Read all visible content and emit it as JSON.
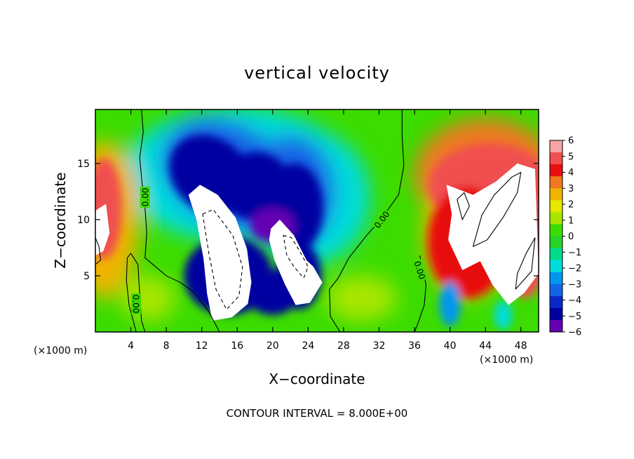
{
  "chart_data": {
    "type": "heatmap",
    "title": "vertical velocity",
    "xlabel": "X−coordinate",
    "ylabel": "Z−coordinate",
    "x_unit_label": "(×1000 m)",
    "y_unit_label": "(×1000 m)",
    "xlim": [
      0,
      50
    ],
    "ylim": [
      0,
      19.8
    ],
    "x_ticks": [
      4,
      8,
      12,
      16,
      20,
      24,
      28,
      32,
      36,
      40,
      44,
      48
    ],
    "x_tick_labels": [
      "4",
      "8",
      "12",
      "16",
      "20",
      "24",
      "28",
      "32",
      "36",
      "40",
      "44",
      "48"
    ],
    "y_ticks": [
      5,
      10,
      15
    ],
    "y_tick_labels": [
      "5",
      "10",
      "15"
    ],
    "footer": "CONTOUR INTERVAL = 8.000E+00",
    "colorbar": {
      "min": -6,
      "max": 6,
      "ticks": [
        6,
        5,
        4,
        3,
        2,
        1,
        0,
        -1,
        -2,
        -3,
        -4,
        -5,
        -6
      ],
      "tick_labels": [
        "6",
        "5",
        "4",
        "3",
        "2",
        "1",
        "0",
        "−1",
        "−2",
        "−3",
        "−4",
        "−5",
        "−6"
      ],
      "colors_top_to_bottom": [
        "#f5a5a5",
        "#f05050",
        "#e81010",
        "#f07820",
        "#f0b400",
        "#e6e600",
        "#a8e600",
        "#3cdc00",
        "#28d228",
        "#00dc8c",
        "#00dcdc",
        "#0096f0",
        "#1464e6",
        "#0a28c8",
        "#0000a0",
        "#6400b4"
      ]
    },
    "contour_labels": [
      "0.00",
      "0.00",
      "0.00",
      "0.00"
    ],
    "features": [
      {
        "kind": "downdraft",
        "x_range": [
          9,
          21
        ],
        "z_range": [
          9,
          18
        ],
        "value": -5
      },
      {
        "kind": "downdraft",
        "x_range": [
          19,
          28
        ],
        "z_range": [
          5,
          17
        ],
        "value": -4.5
      },
      {
        "kind": "downdraft",
        "x_range": [
          10,
          27
        ],
        "z_range": [
          1,
          8
        ],
        "value": -5
      },
      {
        "kind": "updraft",
        "x_range": [
          -1,
          4
        ],
        "z_range": [
          3,
          17
        ],
        "value": 5
      },
      {
        "kind": "updraft",
        "x_range": [
          37,
          50
        ],
        "z_range": [
          1,
          16
        ],
        "value": 5
      }
    ]
  }
}
